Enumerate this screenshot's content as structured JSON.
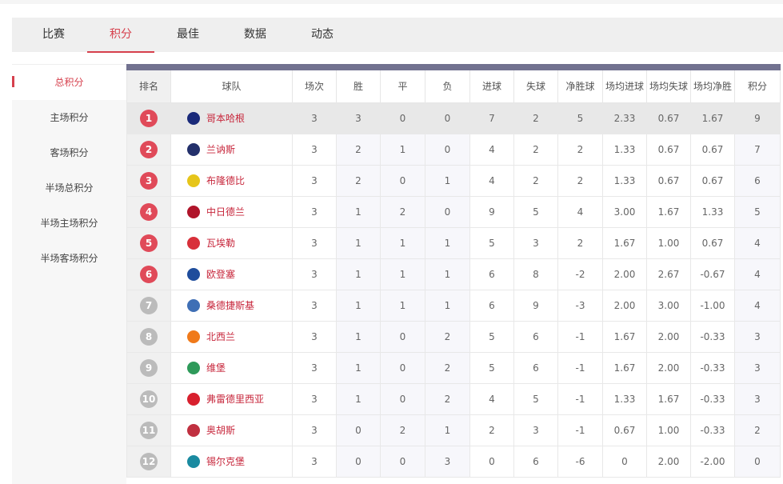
{
  "tabs": [
    "比赛",
    "积分",
    "最佳",
    "数据",
    "动态"
  ],
  "active_tab": 1,
  "sidebar": [
    "总积分",
    "主场积分",
    "客场积分",
    "半场总积分",
    "半场主场积分",
    "半场客场积分"
  ],
  "active_sidebar": 0,
  "accent": "#d6404d",
  "columns": [
    "排名",
    "球队",
    "场次",
    "胜",
    "平",
    "负",
    "进球",
    "失球",
    "净胜球",
    "场均进球",
    "场均失球",
    "场均净胜",
    "积分"
  ],
  "rows": [
    {
      "rank": "1",
      "team": "哥本哈根",
      "logo": "#1a2a7a",
      "v": [
        "3",
        "3",
        "0",
        "0",
        "7",
        "2",
        "5",
        "2.33",
        "0.67",
        "1.67",
        "9"
      ]
    },
    {
      "rank": "2",
      "team": "兰讷斯",
      "logo": "#23306b",
      "v": [
        "3",
        "2",
        "1",
        "0",
        "4",
        "2",
        "2",
        "1.33",
        "0.67",
        "0.67",
        "7"
      ]
    },
    {
      "rank": "3",
      "team": "布隆德比",
      "logo": "#e6c51a",
      "v": [
        "3",
        "2",
        "0",
        "1",
        "4",
        "2",
        "2",
        "1.33",
        "0.67",
        "0.67",
        "6"
      ]
    },
    {
      "rank": "4",
      "team": "中日德兰",
      "logo": "#b0142a",
      "v": [
        "3",
        "1",
        "2",
        "0",
        "9",
        "5",
        "4",
        "3.00",
        "1.67",
        "1.33",
        "5"
      ]
    },
    {
      "rank": "5",
      "team": "瓦埃勒",
      "logo": "#d8303a",
      "v": [
        "3",
        "1",
        "1",
        "1",
        "5",
        "3",
        "2",
        "1.67",
        "1.00",
        "0.67",
        "4"
      ]
    },
    {
      "rank": "6",
      "team": "欧登塞",
      "logo": "#1f4d9c",
      "v": [
        "3",
        "1",
        "1",
        "1",
        "6",
        "8",
        "-2",
        "2.00",
        "2.67",
        "-0.67",
        "4"
      ]
    },
    {
      "rank": "7",
      "team": "桑德捷斯基",
      "logo": "#3f6fb5",
      "v": [
        "3",
        "1",
        "1",
        "1",
        "6",
        "9",
        "-3",
        "2.00",
        "3.00",
        "-1.00",
        "4"
      ]
    },
    {
      "rank": "8",
      "team": "北西兰",
      "logo": "#f07a1a",
      "v": [
        "3",
        "1",
        "0",
        "2",
        "5",
        "6",
        "-1",
        "1.67",
        "2.00",
        "-0.33",
        "3"
      ]
    },
    {
      "rank": "9",
      "team": "维堡",
      "logo": "#2e9a5a",
      "v": [
        "3",
        "1",
        "0",
        "2",
        "5",
        "6",
        "-1",
        "1.67",
        "2.00",
        "-0.33",
        "3"
      ]
    },
    {
      "rank": "10",
      "team": "弗雷德里西亚",
      "logo": "#d8202e",
      "v": [
        "3",
        "1",
        "0",
        "2",
        "4",
        "5",
        "-1",
        "1.33",
        "1.67",
        "-0.33",
        "3"
      ]
    },
    {
      "rank": "11",
      "team": "奥胡斯",
      "logo": "#c03040",
      "v": [
        "3",
        "0",
        "2",
        "1",
        "2",
        "3",
        "-1",
        "0.67",
        "1.00",
        "-0.33",
        "2"
      ]
    },
    {
      "rank": "12",
      "team": "锡尔克堡",
      "logo": "#1a8aa0",
      "v": [
        "3",
        "0",
        "0",
        "3",
        "0",
        "6",
        "-6",
        "0",
        "2.00",
        "-2.00",
        "0"
      ]
    }
  ]
}
